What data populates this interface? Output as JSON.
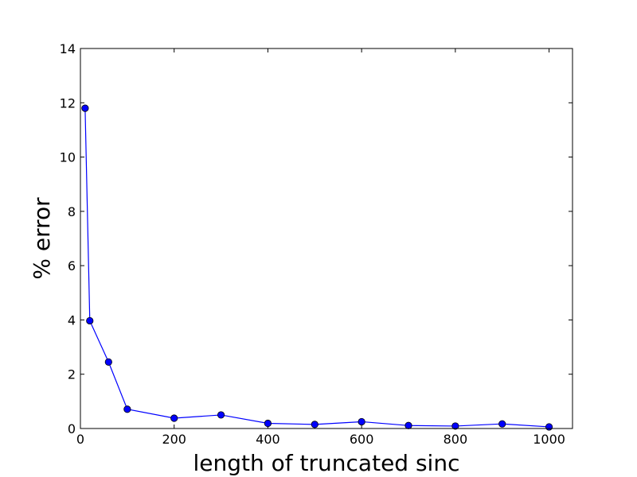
{
  "chart_data": {
    "type": "line",
    "title": "",
    "xlabel": "length of truncated sinc",
    "ylabel": "% error",
    "xlim": [
      0,
      1050
    ],
    "ylim": [
      0,
      14
    ],
    "xticks": [
      0,
      200,
      400,
      600,
      800,
      1000
    ],
    "yticks": [
      0,
      2,
      4,
      6,
      8,
      10,
      12,
      14
    ],
    "grid": false,
    "series": [
      {
        "color": "#0000ff",
        "marker": "circle",
        "x": [
          10,
          20,
          60,
          100,
          200,
          300,
          400,
          500,
          600,
          700,
          800,
          900,
          1000
        ],
        "y": [
          11.8,
          3.97,
          2.45,
          0.71,
          0.38,
          0.5,
          0.19,
          0.15,
          0.25,
          0.11,
          0.09,
          0.17,
          0.06
        ]
      }
    ]
  }
}
